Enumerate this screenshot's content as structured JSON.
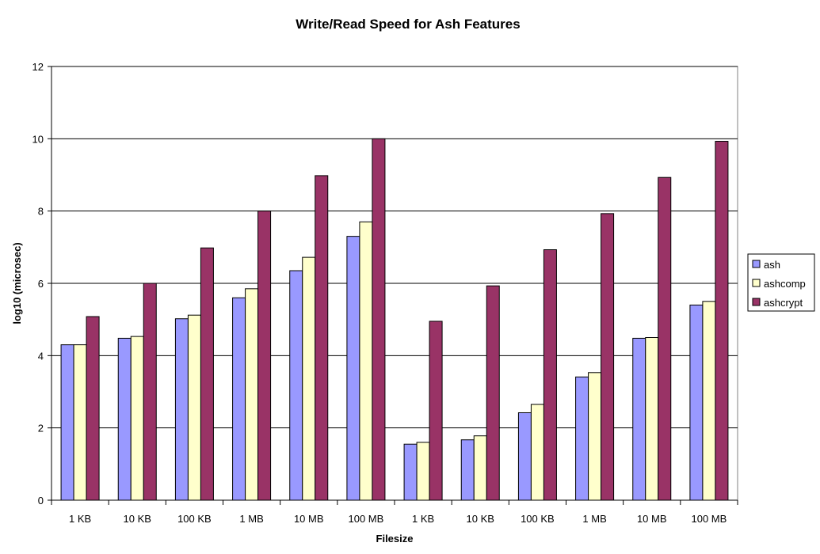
{
  "chart_data": {
    "type": "bar",
    "title": "Write/Read Speed for Ash Features",
    "xlabel": "Filesize",
    "ylabel": "log10 (microsec)",
    "ylim": [
      0,
      12
    ],
    "yticks": [
      0,
      2,
      4,
      6,
      8,
      10,
      12
    ],
    "grid": true,
    "legend_position": "right",
    "categories": [
      "1 KB",
      "10 KB",
      "100 KB",
      "1 MB",
      "10 MB",
      "100 MB",
      "1 KB",
      "10 KB",
      "100 KB",
      "1 MB",
      "10 MB",
      "100 MB"
    ],
    "series": [
      {
        "name": "ash",
        "color": "#9999ff",
        "values": [
          4.3,
          4.48,
          5.02,
          5.6,
          6.35,
          7.3,
          1.55,
          1.67,
          2.42,
          3.41,
          4.48,
          5.4
        ]
      },
      {
        "name": "ashcomp",
        "color": "#ffffcc",
        "values": [
          4.3,
          4.53,
          5.12,
          5.85,
          6.72,
          7.7,
          1.6,
          1.78,
          2.65,
          3.53,
          4.5,
          5.5
        ]
      },
      {
        "name": "ashcrypt",
        "color": "#993366",
        "values": [
          5.08,
          6.0,
          6.98,
          8.0,
          8.98,
          10.0,
          4.95,
          5.93,
          6.93,
          7.93,
          8.93,
          9.93
        ]
      }
    ]
  }
}
